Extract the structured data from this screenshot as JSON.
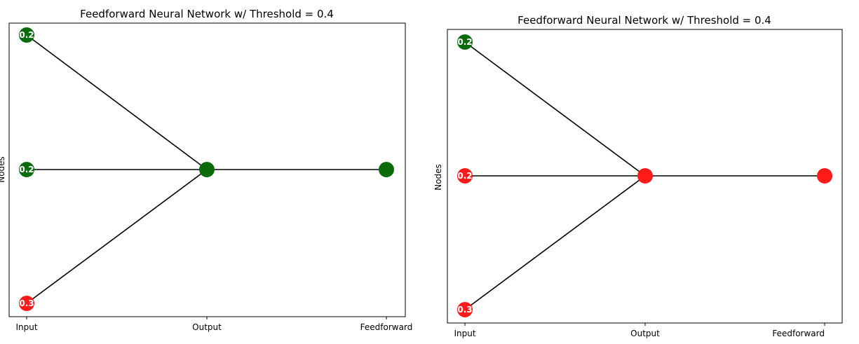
{
  "chart_data": [
    {
      "type": "network",
      "title": "Feedforward Neural Network w/ Threshold = 0.4",
      "ylabel": "Nodes",
      "xlabel": "",
      "categories": [
        "Input",
        "Output",
        "Feedforward"
      ],
      "colors": {
        "active": "#0a6b0a",
        "inactive": "#ff1a1a"
      },
      "input_nodes": [
        {
          "label": "0.2",
          "status": "active"
        },
        {
          "label": "0.2",
          "status": "active"
        },
        {
          "label": "0.3",
          "status": "inactive"
        }
      ],
      "output_node": {
        "label": "",
        "status": "active"
      },
      "feedforward_node": {
        "label": "",
        "status": "active"
      }
    },
    {
      "type": "network",
      "title": "Feedforward Neural Network w/ Threshold = 0.4",
      "ylabel": "Nodes",
      "xlabel": "",
      "categories": [
        "Input",
        "Output",
        "Feedforward"
      ],
      "colors": {
        "active": "#0a6b0a",
        "inactive": "#ff1a1a"
      },
      "input_nodes": [
        {
          "label": "0.2",
          "status": "active"
        },
        {
          "label": "0.2",
          "status": "inactive"
        },
        {
          "label": "0.3",
          "status": "inactive"
        }
      ],
      "output_node": {
        "label": "",
        "status": "inactive"
      },
      "feedforward_node": {
        "label": "",
        "status": "inactive"
      }
    }
  ]
}
